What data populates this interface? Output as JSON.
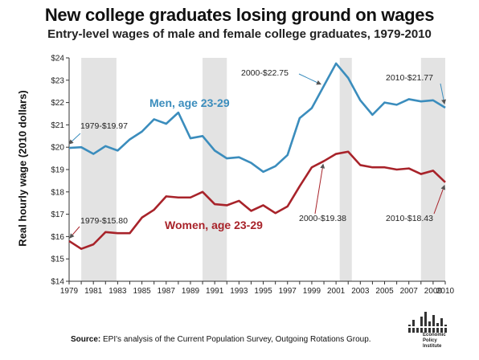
{
  "title": "New college graduates losing ground on wages",
  "subtitle": "Entry-level wages of male and female college graduates, 1979-2010",
  "source_label": "Source:",
  "source_text": " EPI's analysis of the Current Population Survey, Outgoing Rotations Group.",
  "logo_text": [
    "Economic",
    "Policy",
    "Institute"
  ],
  "chart_data": {
    "type": "line",
    "ylabel": "Real hourly wage (2010 dollars)",
    "xlabel": "",
    "ylim": [
      14,
      24
    ],
    "xlim": [
      1979,
      2010
    ],
    "ytick_labels": [
      "$14",
      "$15",
      "$16",
      "$17",
      "$18",
      "$19",
      "$20",
      "$21",
      "$22",
      "$23",
      "$24"
    ],
    "xtick_labels": [
      "1979",
      "1981",
      "1983",
      "1985",
      "1987",
      "1989",
      "1991",
      "1993",
      "1995",
      "1997",
      "1999",
      "2001",
      "2003",
      "2005",
      "2007",
      "2009",
      "2010"
    ],
    "recessions": [
      [
        1980,
        1982.9
      ],
      [
        1990,
        1992
      ],
      [
        2001.3,
        2002.3
      ],
      [
        2008,
        2010
      ]
    ],
    "x": [
      1979,
      1980,
      1981,
      1982,
      1983,
      1984,
      1985,
      1986,
      1987,
      1988,
      1989,
      1990,
      1991,
      1992,
      1993,
      1994,
      1995,
      1996,
      1997,
      1998,
      1999,
      2000,
      2001,
      2002,
      2003,
      2004,
      2005,
      2006,
      2007,
      2008,
      2009,
      2010
    ],
    "series": [
      {
        "name": "Men, age 23-29",
        "color": "#3b8dbd",
        "values": [
          19.97,
          20.0,
          19.7,
          20.05,
          19.85,
          20.35,
          20.7,
          21.25,
          21.05,
          21.55,
          20.4,
          20.5,
          19.85,
          19.5,
          19.55,
          19.3,
          18.9,
          19.15,
          19.65,
          21.3,
          21.75,
          22.75,
          23.75,
          23.1,
          22.1,
          21.45,
          22.0,
          21.9,
          22.15,
          22.05,
          22.1,
          21.77
        ]
      },
      {
        "name": "Women, age 23-29",
        "color": "#a8232a",
        "values": [
          15.8,
          15.45,
          15.65,
          16.2,
          16.15,
          16.15,
          16.85,
          17.2,
          17.8,
          17.75,
          17.75,
          18.0,
          17.45,
          17.4,
          17.6,
          17.15,
          17.4,
          17.05,
          17.35,
          18.25,
          19.1,
          19.38,
          19.7,
          19.8,
          19.2,
          19.1,
          19.1,
          19.0,
          19.05,
          18.8,
          18.95,
          18.43
        ]
      }
    ],
    "annotations": [
      {
        "text": "1979-$19.97",
        "color": "#222"
      },
      {
        "text": "2000-$22.75",
        "color": "#222"
      },
      {
        "text": "2010-$21.77",
        "color": "#222"
      },
      {
        "text": "1979-$15.80",
        "color": "#222"
      },
      {
        "text": "2000-$19.38",
        "color": "#222"
      },
      {
        "text": "2010-$18.43",
        "color": "#222"
      }
    ],
    "grid": false
  }
}
